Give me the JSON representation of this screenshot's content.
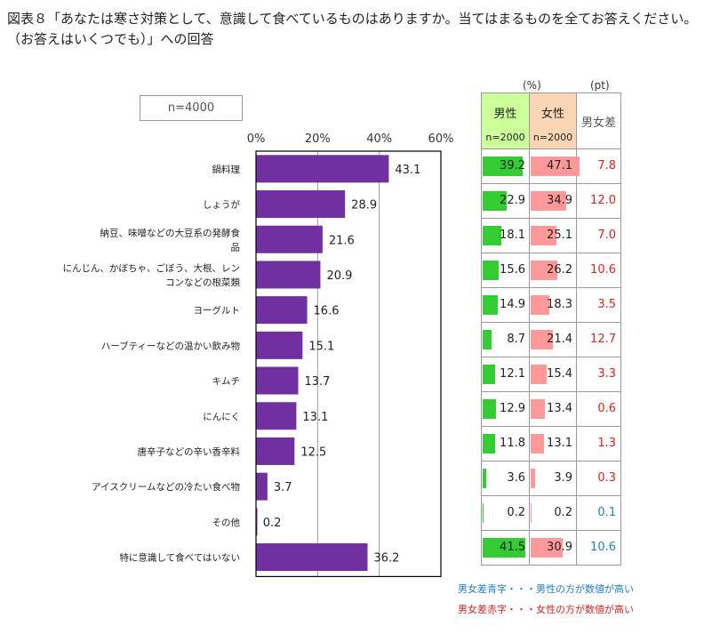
{
  "title": "図表８「あなたは寒さ対策として、意識して食べているものはありますか。当てはまるものを全てお答えください。（お答えはいくつでも）」への回答",
  "n_total": "n=4000",
  "table": {
    "unit_pct": "(%)",
    "unit_pt": "(pt)",
    "male_header": "男性",
    "female_header": "女性",
    "male_n": "n=2000",
    "female_n": "n=2000",
    "diff_header": "男女差"
  },
  "legend": {
    "blue_text": "男女差青字・・・男性の方が数値が高い",
    "red_text": "男女差赤字・・・女性の方が数値が高い"
  },
  "colors": {
    "bar": "#7030a0",
    "male_bar": "#33cc33",
    "female_bar": "#ff9999",
    "male_header": "#ccff99",
    "female_header": "#fcd5b5",
    "diff_red": "#e02020",
    "diff_blue": "#1e7fc8"
  },
  "chart_data": {
    "type": "bar",
    "orientation": "horizontal",
    "xlim": [
      0,
      60
    ],
    "xticks": [
      "0%",
      "20%",
      "40%",
      "60%"
    ],
    "categories": [
      "鍋料理",
      "しょうが",
      "納豆、味噌などの大豆系の発酵食品",
      "にんじん、かぼちゃ、ごぼう、大根、レンコンなどの根菜類",
      "ヨーグルト",
      "ハーブティーなどの温かい飲み物",
      "キムチ",
      "にんにく",
      "唐辛子などの辛い香辛料",
      "アイスクリームなどの冷たい食べ物",
      "その他",
      "特に意識して食べてはいない"
    ],
    "category_lines": [
      [
        "鍋料理"
      ],
      [
        "しょうが"
      ],
      [
        "納豆、味噌などの大豆系の発酵食",
        "品"
      ],
      [
        "にんじん、かぼちゃ、ごぼう、大根、レン",
        "コンなどの根菜類"
      ],
      [
        "ヨーグルト"
      ],
      [
        "ハーブティーなどの温かい飲み物"
      ],
      [
        "キムチ"
      ],
      [
        "にんにく"
      ],
      [
        "唐辛子などの辛い香辛料"
      ],
      [
        "アイスクリームなどの冷たい食べ物"
      ],
      [
        "その他"
      ],
      [
        "特に意識して食べてはいない"
      ]
    ],
    "values": [
      43.1,
      28.9,
      21.6,
      20.9,
      16.6,
      15.1,
      13.7,
      13.1,
      12.5,
      3.7,
      0.2,
      36.2
    ],
    "male": [
      39.2,
      22.9,
      18.1,
      15.6,
      14.9,
      8.7,
      12.1,
      12.9,
      11.8,
      3.6,
      0.2,
      41.5
    ],
    "female": [
      47.1,
      34.9,
      25.1,
      26.2,
      18.3,
      21.4,
      15.4,
      13.4,
      13.1,
      3.9,
      0.2,
      30.9
    ],
    "diff": [
      "7.8",
      "12.0",
      "7.0",
      "10.6",
      "3.5",
      "12.7",
      "3.3",
      "0.6",
      "1.3",
      "0.3",
      "0.1",
      "10.6"
    ],
    "diff_color": [
      "red",
      "red",
      "red",
      "red",
      "red",
      "red",
      "red",
      "red",
      "red",
      "red",
      "blue",
      "blue"
    ]
  }
}
